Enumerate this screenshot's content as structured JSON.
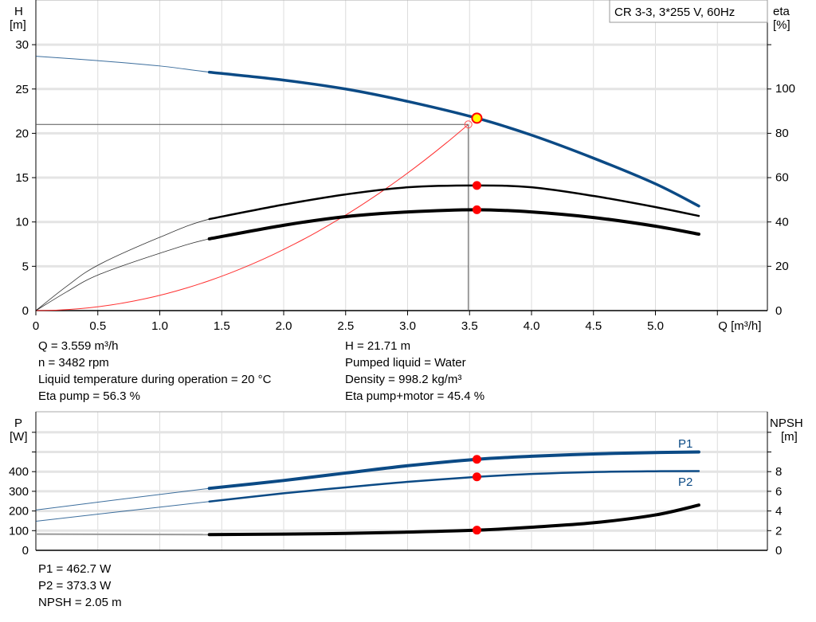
{
  "chart_data": [
    {
      "type": "line",
      "legend_box": "CR 3-3, 3*255 V, 60Hz",
      "ylabel": "H",
      "yunit": "[m]",
      "y2label": "eta",
      "y2unit": "[%]",
      "xlabel": "Q [m³/h]",
      "xlim": [
        0,
        5.9
      ],
      "ylim": [
        0,
        35
      ],
      "y2lim": [
        0,
        125.5
      ],
      "xticks": [
        "0",
        "0.5",
        "1.0",
        "1.5",
        "2.0",
        "2.5",
        "3.0",
        "3.5",
        "4.0",
        "4.5",
        "5.0"
      ],
      "yticks": [
        0,
        5,
        10,
        15,
        20,
        25,
        30
      ],
      "y2ticks": [
        0,
        20,
        40,
        60,
        80,
        100
      ],
      "grid": true,
      "series": [
        {
          "key": "H",
          "axis": "left",
          "color": "#0b4a85",
          "thin_below": 1.4,
          "x": [
            0,
            0.5,
            1.0,
            1.4,
            2.0,
            2.5,
            3.0,
            3.559,
            4.0,
            4.5,
            5.0,
            5.35
          ],
          "y": [
            28.7,
            28.2,
            27.6,
            26.9,
            26.0,
            25.0,
            23.6,
            21.71,
            19.8,
            17.2,
            14.3,
            11.8
          ]
        },
        {
          "key": "eta_pump",
          "axis": "right",
          "color": "#000000",
          "thin_below": 1.4,
          "x": [
            0,
            0.25,
            0.5,
            1.0,
            1.4,
            2.0,
            2.5,
            3.0,
            3.559,
            4.0,
            4.5,
            5.0,
            5.35
          ],
          "y": [
            0,
            11,
            20.4,
            33,
            41.2,
            47.7,
            52.3,
            55.5,
            56.3,
            55.5,
            51.6,
            46.6,
            42.6
          ]
        },
        {
          "key": "eta_pump_motor",
          "axis": "right",
          "color": "#000000",
          "thin_below": 1.4,
          "x": [
            0,
            0.25,
            0.5,
            1.0,
            1.4,
            2.0,
            2.5,
            3.0,
            3.559,
            4.0,
            4.5,
            5.0,
            5.35
          ],
          "y": [
            0,
            8.5,
            16,
            25.8,
            32.3,
            38.4,
            42.3,
            44.4,
            45.4,
            44.4,
            41.9,
            38,
            34.4
          ]
        },
        {
          "key": "system",
          "axis": "left",
          "color": "#ff3030",
          "system_k": 1.724,
          "x_end": 3.49
        }
      ],
      "operating_point": {
        "Q": 3.559,
        "H": 21.71,
        "eta_pump": 56.3,
        "eta_pump_motor": 45.4
      },
      "duty_point": {
        "Q": 3.49,
        "H": 21.0
      }
    },
    {
      "type": "line",
      "ylabel": "P",
      "yunit": "[W]",
      "y2label": "NPSH",
      "y2unit": "[m]",
      "xlim": [
        0,
        5.9
      ],
      "ylim": [
        0,
        700
      ],
      "y2lim": [
        0,
        14
      ],
      "yticks": [
        0,
        100,
        200,
        300,
        400
      ],
      "y2ticks": [
        0,
        2,
        4,
        6,
        8
      ],
      "grid": true,
      "series": [
        {
          "name": "P1",
          "axis": "left",
          "color": "#0b4a85",
          "thin_below": 1.4,
          "x": [
            0,
            1.4,
            2.0,
            2.5,
            3.0,
            3.559,
            4.0,
            4.5,
            5.0,
            5.35
          ],
          "y": [
            205,
            315,
            355,
            393,
            430,
            462.7,
            478,
            490,
            497,
            500
          ]
        },
        {
          "name": "P2",
          "axis": "left",
          "color": "#0b4a85",
          "thin_below": 1.4,
          "x": [
            0,
            1.4,
            2.0,
            2.5,
            3.0,
            3.559,
            4.0,
            4.5,
            5.0,
            5.35
          ],
          "y": [
            148,
            248,
            290,
            320,
            348,
            373.3,
            388,
            398,
            402,
            403
          ]
        },
        {
          "key": "NPSH",
          "axis": "right",
          "color": "#000000",
          "thin_below": 1.4,
          "x": [
            0,
            1.4,
            2.0,
            2.5,
            3.0,
            3.559,
            4.0,
            4.5,
            5.0,
            5.35
          ],
          "y": [
            1.65,
            1.6,
            1.65,
            1.72,
            1.85,
            2.05,
            2.35,
            2.8,
            3.6,
            4.6
          ]
        }
      ],
      "operating_point": {
        "Q": 3.559,
        "P1": 462.7,
        "P2": 373.3,
        "NPSH": 2.05
      }
    }
  ],
  "info_top_left": [
    "Q = 3.559 m³/h",
    "n = 3482 rpm",
    "Liquid temperature during operation = 20 °C",
    "Eta pump = 56.3 %"
  ],
  "info_top_right": [
    "H = 21.71 m",
    "Pumped liquid = Water",
    "Density = 998.2 kg/m³",
    "Eta pump+motor = 45.4 %"
  ],
  "info_bottom": [
    "P1 = 462.7 W",
    "P2 = 373.3 W",
    "NPSH = 2.05 m"
  ]
}
